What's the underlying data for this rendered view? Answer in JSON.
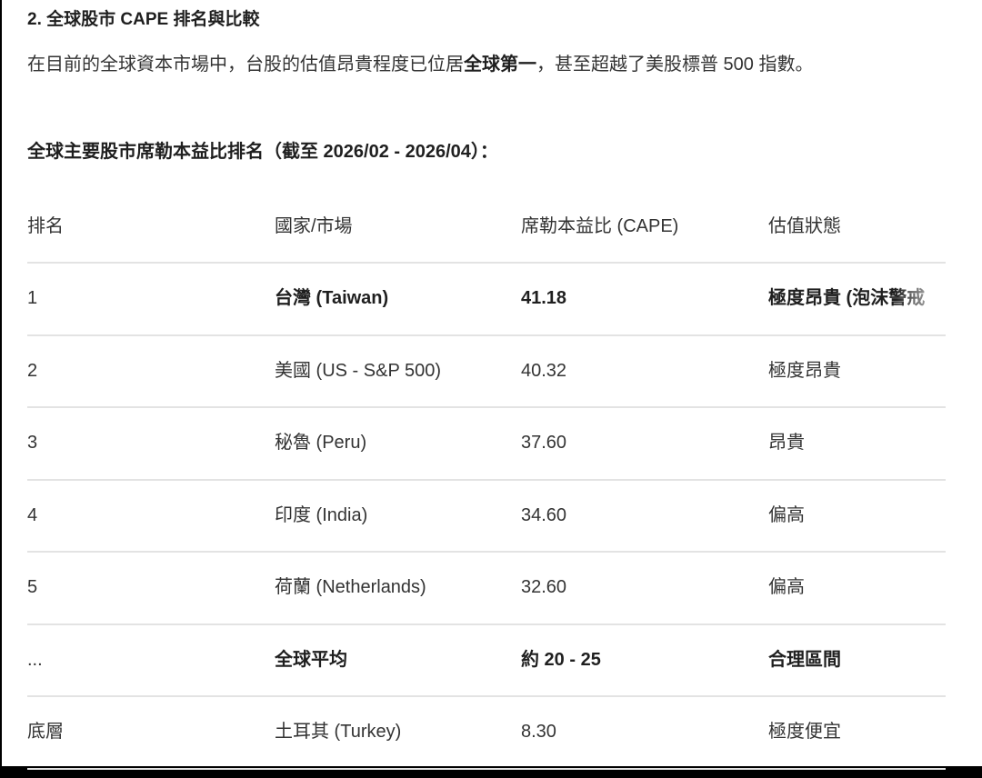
{
  "heading": "2. 全球股市 CAPE 排名與比較",
  "paragraph": {
    "before": "在目前的全球資本市場中，台股的估值昂貴程度已位居",
    "bold": "全球第一",
    "after": "，甚至超越了美股標普 500 指數。"
  },
  "subheading": "全球主要股市席勒本益比排名（截至 2026/02 - 2026/04）：",
  "table": {
    "headers": [
      "排名",
      "國家/市場",
      "席勒本益比 (CAPE)",
      "估值狀態"
    ],
    "rows": [
      {
        "rank": "1",
        "market": "台灣 (Taiwan)",
        "cape": "41.18",
        "status": "極度昂貴 (泡沫警戒",
        "bold": true
      },
      {
        "rank": "2",
        "market": "美國 (US - S&P 500)",
        "cape": "40.32",
        "status": "極度昂貴",
        "bold": false
      },
      {
        "rank": "3",
        "market": "秘魯 (Peru)",
        "cape": "37.60",
        "status": "昂貴",
        "bold": false
      },
      {
        "rank": "4",
        "market": "印度 (India)",
        "cape": "34.60",
        "status": "偏高",
        "bold": false
      },
      {
        "rank": "5",
        "market": "荷蘭 (Netherlands)",
        "cape": "32.60",
        "status": "偏高",
        "bold": false
      },
      {
        "rank": "...",
        "market": "全球平均",
        "cape": "約 20 - 25",
        "status": "合理區間",
        "bold": true
      },
      {
        "rank": "底層",
        "market": "土耳其 (Turkey)",
        "cape": "8.30",
        "status": "極度便宜",
        "bold": false
      }
    ]
  }
}
